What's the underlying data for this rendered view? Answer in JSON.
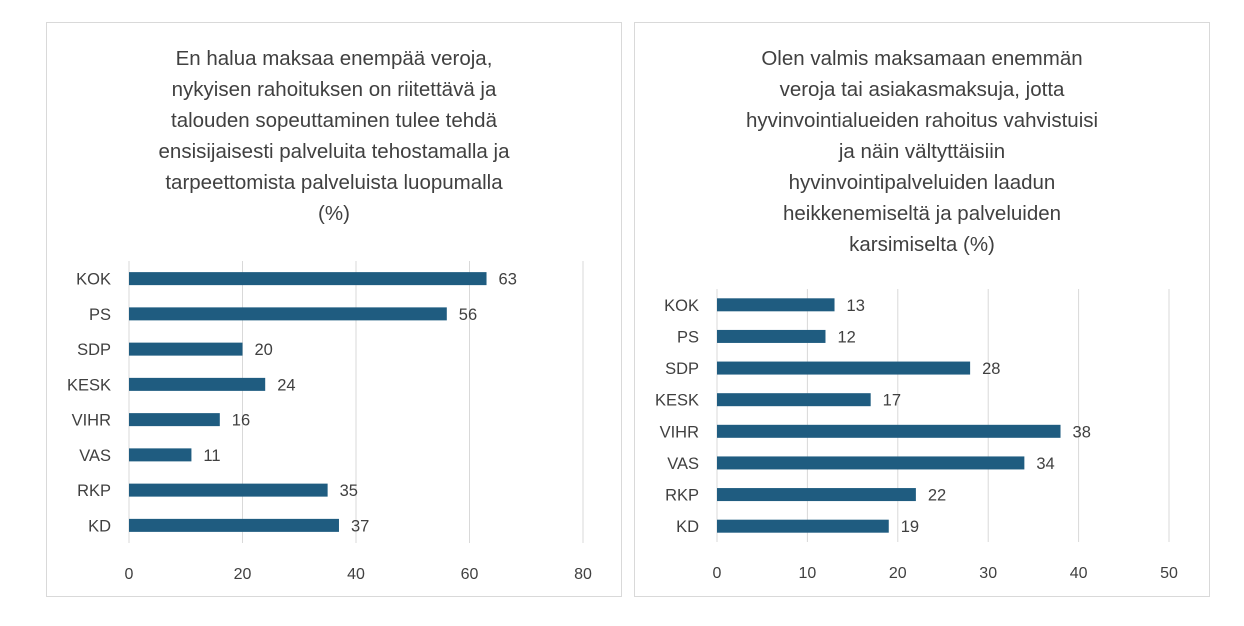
{
  "chart_data": [
    {
      "type": "bar",
      "orientation": "horizontal",
      "title": "En halua maksaa enempää veroja,\nnykyisen rahoituksen on riitettävä ja\ntalouden sopeuttaminen tulee tehdä\nensisijaisesti palveluita tehostamalla ja\ntarpeettomista palveluista luopumalla\n(%)",
      "categories": [
        "KOK",
        "PS",
        "SDP",
        "KESK",
        "VIHR",
        "VAS",
        "RKP",
        "KD"
      ],
      "values": [
        63,
        56,
        20,
        24,
        16,
        11,
        35,
        37
      ],
      "data_labels": [
        "63",
        "56",
        "20",
        "24",
        "16",
        "11",
        "35",
        "37"
      ],
      "xlim": [
        0,
        80
      ],
      "xticks": [
        0,
        20,
        40,
        60,
        80
      ],
      "xtick_labels": [
        "0",
        "20",
        "40",
        "60",
        "80"
      ],
      "grid": true,
      "color": "#1f5c80"
    },
    {
      "type": "bar",
      "orientation": "horizontal",
      "title": "Olen valmis maksamaan enemmän\nveroja tai asiakasmaksuja, jotta\nhyvinvointialueiden rahoitus vahvistuisi\nja näin vältyttäisiin\nhyvinvointipalveluiden laadun\nheikkenemiseltä ja palveluiden\nkarsimiselta (%)",
      "categories": [
        "KOK",
        "PS",
        "SDP",
        "KESK",
        "VIHR",
        "VAS",
        "RKP",
        "KD"
      ],
      "values": [
        13,
        12,
        28,
        17,
        38,
        34,
        22,
        19
      ],
      "data_labels": [
        "13",
        "12",
        "28",
        "17",
        "38",
        "34",
        "22",
        "19"
      ],
      "xlim": [
        0,
        50
      ],
      "xticks": [
        0,
        10,
        20,
        30,
        40,
        50
      ],
      "xtick_labels": [
        "0",
        "10",
        "20",
        "30",
        "40",
        "50"
      ],
      "grid": true,
      "color": "#1f5c80"
    }
  ]
}
